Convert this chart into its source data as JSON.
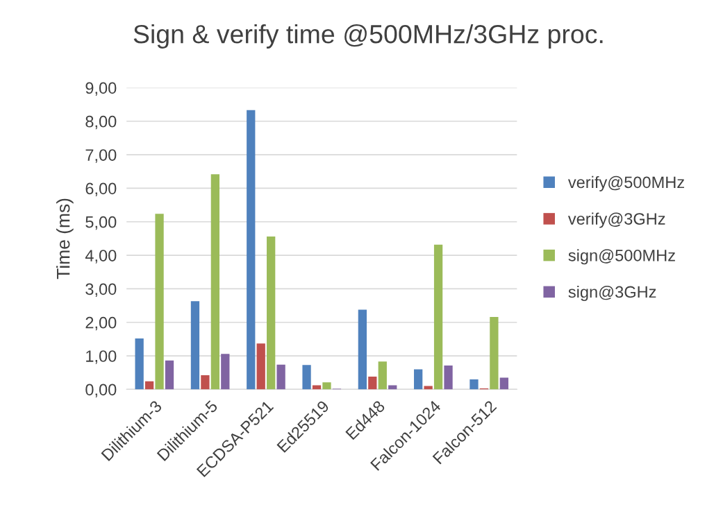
{
  "chart_data": {
    "type": "bar",
    "title": "Sign & verify time @500MHz/3GHz proc.",
    "ylabel": "Time (ms)",
    "categories": [
      "Dilithium-3",
      "Dilithium-5",
      "ECDSA-P521",
      "Ed25519",
      "Ed448",
      "Falcon-1024",
      "Falcon-512"
    ],
    "series": [
      {
        "name": "verify@500MHz",
        "color": "#4f81bd",
        "values": [
          1.52,
          2.63,
          8.33,
          0.73,
          2.38,
          0.6,
          0.3
        ]
      },
      {
        "name": "verify@3GHz",
        "color": "#c0504d",
        "values": [
          0.24,
          0.42,
          1.37,
          0.12,
          0.38,
          0.1,
          0.03
        ]
      },
      {
        "name": "sign@500MHz",
        "color": "#9bbb59",
        "values": [
          5.24,
          6.42,
          4.56,
          0.21,
          0.83,
          4.32,
          2.16
        ]
      },
      {
        "name": "sign@3GHz",
        "color": "#8064a2",
        "values": [
          0.86,
          1.06,
          0.74,
          0.02,
          0.12,
          0.71,
          0.35
        ]
      }
    ],
    "ylim": [
      0,
      9
    ],
    "yticks": [
      {
        "value": 0,
        "label": "0,00"
      },
      {
        "value": 1,
        "label": "1,00"
      },
      {
        "value": 2,
        "label": "2,00"
      },
      {
        "value": 3,
        "label": "3,00"
      },
      {
        "value": 4,
        "label": "4,00"
      },
      {
        "value": 5,
        "label": "5,00"
      },
      {
        "value": 6,
        "label": "6,00"
      },
      {
        "value": 7,
        "label": "7,00"
      },
      {
        "value": 8,
        "label": "8,00"
      },
      {
        "value": 9,
        "label": "9,00"
      }
    ],
    "grid": "y",
    "legend": "right"
  }
}
